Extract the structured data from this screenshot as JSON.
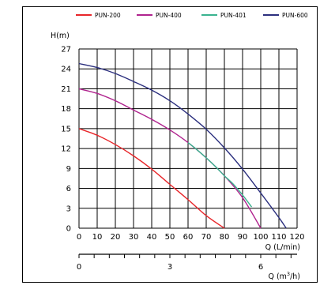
{
  "chart_data": {
    "type": "line",
    "title": "",
    "ylabel": "H(m)",
    "xlabel": "Q (L/min)",
    "x2label_prefix": "Q (m",
    "x2label_sup": "3",
    "x2label_suffix": "/h)",
    "xlim": [
      0,
      120
    ],
    "ylim": [
      0,
      27
    ],
    "xticks": [
      0,
      10,
      20,
      30,
      40,
      50,
      60,
      70,
      80,
      90,
      100,
      110,
      120
    ],
    "yticks": [
      0,
      3,
      6,
      9,
      12,
      15,
      18,
      21,
      24,
      27
    ],
    "x2_ticks_labeled": [
      {
        "value": 0,
        "label": "0"
      },
      {
        "value": 3,
        "label": "3"
      },
      {
        "value": 6,
        "label": "6"
      }
    ],
    "x2_minor_step": 0.5,
    "x2lim_m3h": [
      0,
      7.2
    ],
    "grid": true,
    "legend_position": "top",
    "series": [
      {
        "name": "PUN-200",
        "color": "#e8262a",
        "x": [
          0,
          10,
          20,
          30,
          40,
          50,
          60,
          70,
          80
        ],
        "y": [
          15,
          14,
          12.6,
          10.9,
          8.9,
          6.6,
          4.3,
          1.9,
          0
        ]
      },
      {
        "name": "PUN-400",
        "color": "#b0238e",
        "x": [
          0,
          10,
          20,
          30,
          40,
          50,
          60,
          70,
          80,
          90,
          100
        ],
        "y": [
          21,
          20.3,
          19.2,
          17.8,
          16.4,
          14.8,
          12.9,
          10.6,
          7.9,
          4.6,
          0
        ]
      },
      {
        "name": "PUN-401",
        "color": "#3ab38f",
        "x": [
          60,
          65,
          70,
          75,
          80,
          85,
          90,
          95
        ],
        "y": [
          12.9,
          11.8,
          10.6,
          9.3,
          7.9,
          6.6,
          5.0,
          3.2
        ]
      },
      {
        "name": "PUN-600",
        "color": "#2b2f7e",
        "x": [
          0,
          10,
          20,
          30,
          40,
          50,
          60,
          70,
          80,
          90,
          100,
          110,
          114
        ],
        "y": [
          24.8,
          24.2,
          23.3,
          22.1,
          20.8,
          19.2,
          17.2,
          14.9,
          12.1,
          8.9,
          5.3,
          1.6,
          0
        ]
      }
    ]
  }
}
